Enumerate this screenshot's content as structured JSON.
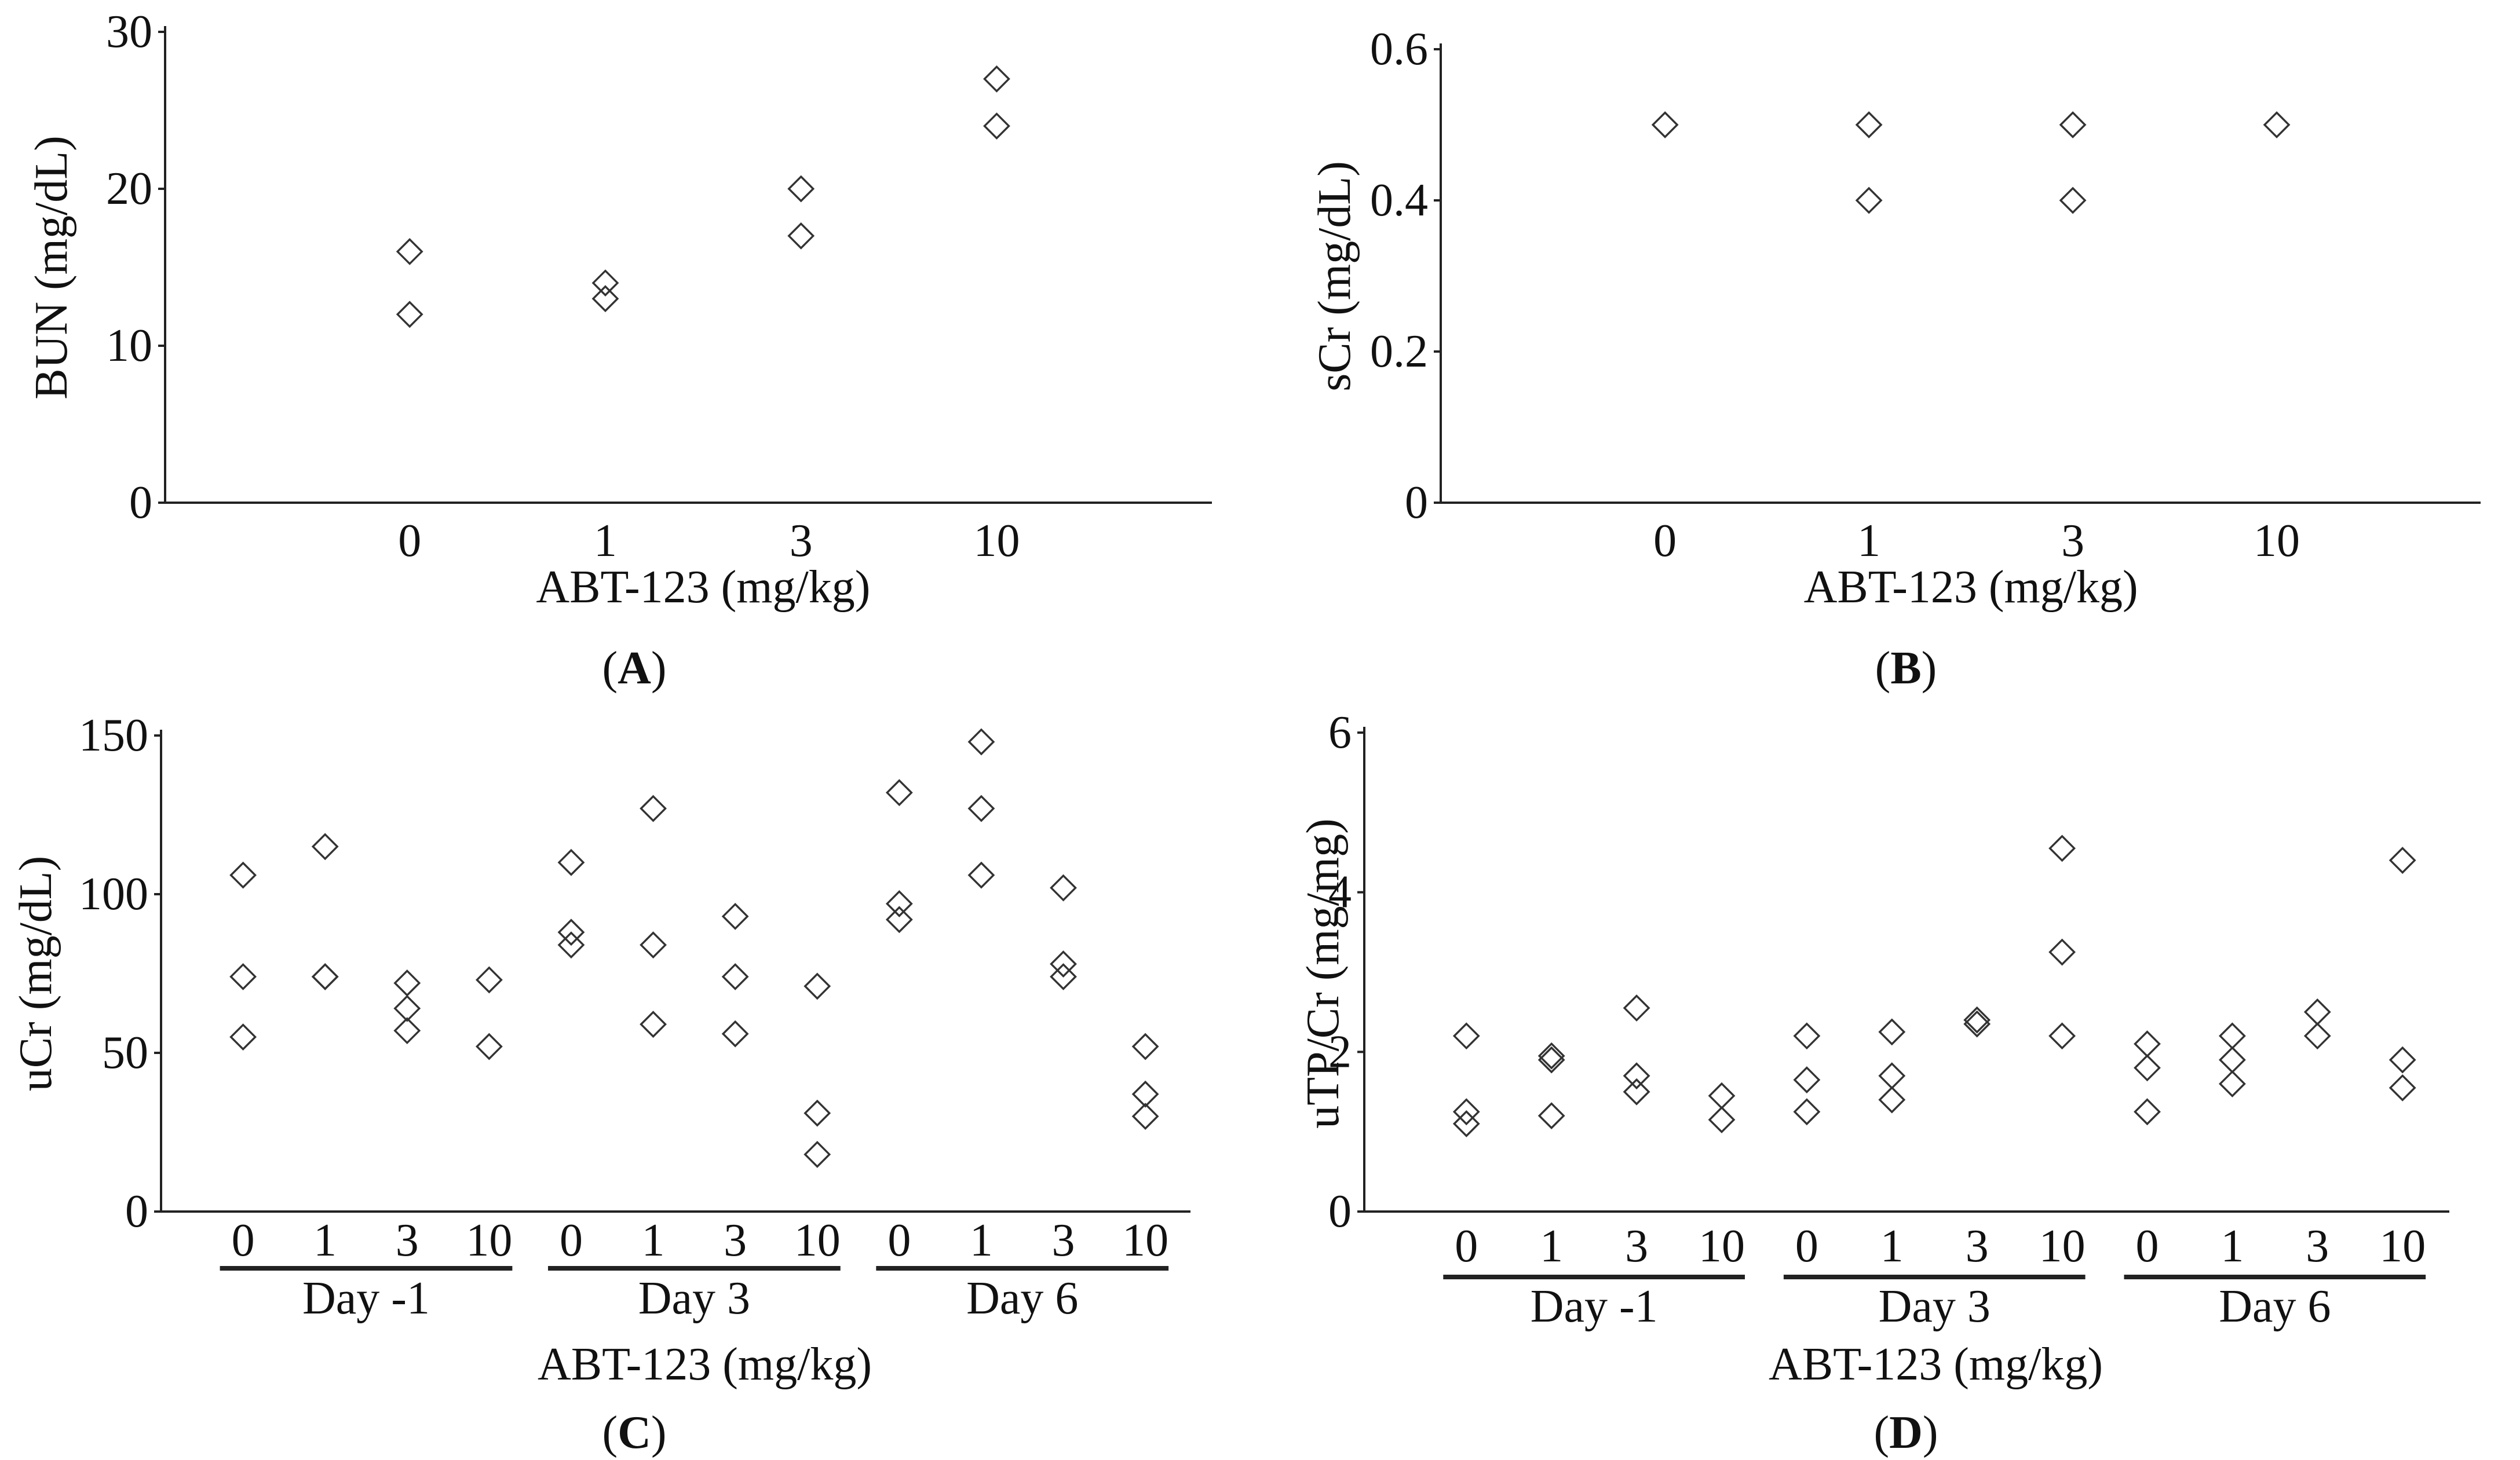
{
  "figure": {
    "colors": {
      "axis": "#222222",
      "marker": "#333333",
      "background": "#ffffff"
    },
    "marker_shape": "open-diamond"
  },
  "chart_data": [
    {
      "panel": "A",
      "panel_label": "A",
      "type": "scatter",
      "title": "",
      "xlabel": "ABT-123 (mg/kg)",
      "ylabel": "BUN (mg/dL)",
      "ylim": [
        0,
        30
      ],
      "yticks": [
        0,
        10,
        20,
        30
      ],
      "ytick_labels": [
        "0",
        "10",
        "20",
        "30"
      ],
      "xlim": [
        -1.25,
        4.1
      ],
      "categories": [
        "0",
        "1",
        "3",
        "10"
      ],
      "points": [
        {
          "x": 0,
          "y": 16
        },
        {
          "x": 0,
          "y": 12
        },
        {
          "x": 1,
          "y": 14
        },
        {
          "x": 1,
          "y": 13
        },
        {
          "x": 2,
          "y": 20
        },
        {
          "x": 2,
          "y": 17
        },
        {
          "x": 3,
          "y": 27
        },
        {
          "x": 3,
          "y": 24
        }
      ],
      "grid": false
    },
    {
      "panel": "B",
      "panel_label": "B",
      "type": "scatter",
      "title": "",
      "xlabel": "ABT-123 (mg/kg)",
      "ylabel": "sCr (mg/dL)",
      "ylim": [
        0,
        0.6
      ],
      "yticks": [
        0,
        0.2,
        0.4,
        0.6
      ],
      "ytick_labels": [
        "0",
        "0.2",
        "0.4",
        "0.6"
      ],
      "xlim": [
        -1.1,
        4.0
      ],
      "categories": [
        "0",
        "1",
        "3",
        "10"
      ],
      "points": [
        {
          "x": 0,
          "y": 0.5
        },
        {
          "x": 1,
          "y": 0.5
        },
        {
          "x": 1,
          "y": 0.4
        },
        {
          "x": 2,
          "y": 0.5
        },
        {
          "x": 2,
          "y": 0.4
        },
        {
          "x": 3,
          "y": 0.5
        }
      ],
      "grid": false
    },
    {
      "panel": "C",
      "panel_label": "C",
      "type": "scatter",
      "title": "",
      "xlabel": "ABT-123 (mg/kg)",
      "ylabel": "uCr (mg/dL)",
      "ylim": [
        0,
        150
      ],
      "yticks": [
        0,
        50,
        100,
        150
      ],
      "ytick_labels": [
        "0",
        "50",
        "100",
        "150"
      ],
      "xlim": [
        -1.0,
        11.55
      ],
      "categories": [
        "0",
        "1",
        "3",
        "10",
        "0",
        "1",
        "3",
        "10",
        "0",
        "1",
        "3",
        "10"
      ],
      "groups": [
        {
          "label": "Day -1",
          "start": 0,
          "end": 3
        },
        {
          "label": "Day 3",
          "start": 4,
          "end": 7
        },
        {
          "label": "Day 6",
          "start": 8,
          "end": 11
        }
      ],
      "points": [
        {
          "x": 0,
          "y": 106
        },
        {
          "x": 0,
          "y": 74
        },
        {
          "x": 0,
          "y": 55
        },
        {
          "x": 1,
          "y": 115
        },
        {
          "x": 1,
          "y": 74
        },
        {
          "x": 1,
          "y": 74
        },
        {
          "x": 2,
          "y": 72
        },
        {
          "x": 2,
          "y": 64
        },
        {
          "x": 2,
          "y": 57
        },
        {
          "x": 3,
          "y": 73
        },
        {
          "x": 3,
          "y": 52
        },
        {
          "x": 4,
          "y": 110
        },
        {
          "x": 4,
          "y": 88
        },
        {
          "x": 4,
          "y": 84
        },
        {
          "x": 5,
          "y": 127
        },
        {
          "x": 5,
          "y": 84
        },
        {
          "x": 5,
          "y": 59
        },
        {
          "x": 6,
          "y": 93
        },
        {
          "x": 6,
          "y": 74
        },
        {
          "x": 6,
          "y": 56
        },
        {
          "x": 7,
          "y": 71
        },
        {
          "x": 7,
          "y": 31
        },
        {
          "x": 7,
          "y": 18
        },
        {
          "x": 8,
          "y": 132
        },
        {
          "x": 8,
          "y": 97
        },
        {
          "x": 8,
          "y": 92
        },
        {
          "x": 9,
          "y": 148
        },
        {
          "x": 9,
          "y": 127
        },
        {
          "x": 9,
          "y": 106
        },
        {
          "x": 10,
          "y": 102
        },
        {
          "x": 10,
          "y": 78
        },
        {
          "x": 10,
          "y": 74
        },
        {
          "x": 11,
          "y": 52
        },
        {
          "x": 11,
          "y": 37
        },
        {
          "x": 11,
          "y": 30
        }
      ],
      "grid": false
    },
    {
      "panel": "D",
      "panel_label": "D",
      "type": "scatter",
      "title": "",
      "xlabel": "ABT-123 (mg/kg)",
      "ylabel": "uTP/Cr (mg/mg)",
      "ylim": [
        0,
        6
      ],
      "yticks": [
        0,
        2,
        4,
        6
      ],
      "ytick_labels": [
        "0",
        "2",
        "4",
        "6"
      ],
      "xlim": [
        -1.2,
        11.55
      ],
      "categories": [
        "0",
        "1",
        "3",
        "10",
        "0",
        "1",
        "3",
        "10",
        "0",
        "1",
        "3",
        "10"
      ],
      "groups": [
        {
          "label": "Day -1",
          "start": 0,
          "end": 3
        },
        {
          "label": "Day 3",
          "start": 4,
          "end": 7
        },
        {
          "label": "Day 6",
          "start": 8,
          "end": 11
        }
      ],
      "points": [
        {
          "x": 0,
          "y": 2.2
        },
        {
          "x": 0,
          "y": 1.25
        },
        {
          "x": 0,
          "y": 1.1
        },
        {
          "x": 1,
          "y": 1.95
        },
        {
          "x": 1,
          "y": 1.9
        },
        {
          "x": 1,
          "y": 1.2
        },
        {
          "x": 2,
          "y": 2.55
        },
        {
          "x": 2,
          "y": 1.7
        },
        {
          "x": 2,
          "y": 1.5
        },
        {
          "x": 3,
          "y": 1.45
        },
        {
          "x": 3,
          "y": 1.15
        },
        {
          "x": 4,
          "y": 2.2
        },
        {
          "x": 4,
          "y": 1.65
        },
        {
          "x": 4,
          "y": 1.25
        },
        {
          "x": 5,
          "y": 2.25
        },
        {
          "x": 5,
          "y": 1.7
        },
        {
          "x": 5,
          "y": 1.4
        },
        {
          "x": 6,
          "y": 2.4
        },
        {
          "x": 6,
          "y": 2.35
        },
        {
          "x": 7,
          "y": 4.55
        },
        {
          "x": 7,
          "y": 3.25
        },
        {
          "x": 7,
          "y": 2.2
        },
        {
          "x": 8,
          "y": 2.1
        },
        {
          "x": 8,
          "y": 1.8
        },
        {
          "x": 8,
          "y": 1.25
        },
        {
          "x": 9,
          "y": 2.2
        },
        {
          "x": 9,
          "y": 1.9
        },
        {
          "x": 9,
          "y": 1.6
        },
        {
          "x": 10,
          "y": 2.5
        },
        {
          "x": 10,
          "y": 2.2
        },
        {
          "x": 11,
          "y": 4.4
        },
        {
          "x": 11,
          "y": 1.9
        },
        {
          "x": 11,
          "y": 1.55
        }
      ],
      "grid": false
    }
  ]
}
